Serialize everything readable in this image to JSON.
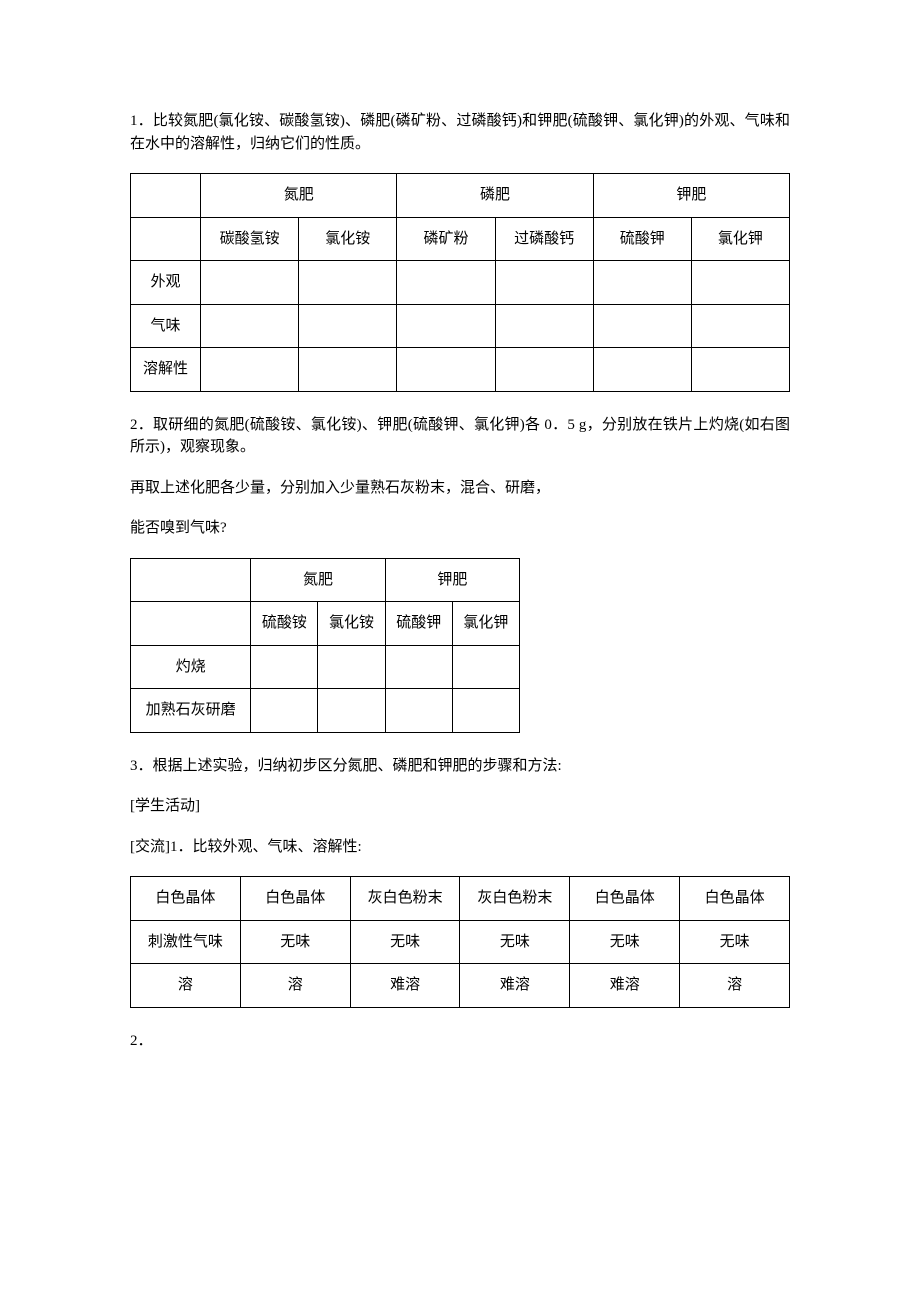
{
  "paragraphs": {
    "p1": "1．比较氮肥(氯化铵、碳酸氢铵)、磷肥(磷矿粉、过磷酸钙)和钾肥(硫酸钾、氯化钾)的外观、气味和在水中的溶解性，归纳它们的性质。",
    "p2": "2．取研细的氮肥(硫酸铵、氯化铵)、钾肥(硫酸钾、氯化钾)各 0．5 g，分别放在铁片上灼烧(如右图所示)，观察现象。",
    "p3": "再取上述化肥各少量，分别加入少量熟石灰粉末，混合、研磨，",
    "p4": "能否嗅到气味?",
    "p5": "3．根据上述实验，归纳初步区分氮肥、磷肥和钾肥的步骤和方法:",
    "p6": "[学生活动]",
    "p7": "[交流]1．比较外观、气味、溶解性:",
    "p8": "2．"
  },
  "table1": {
    "headers": {
      "group1": "氮肥",
      "group2": "磷肥",
      "group3": "钾肥",
      "sub1": "碳酸氢铵",
      "sub2": "氯化铵",
      "sub3": "磷矿粉",
      "sub4": "过磷酸钙",
      "sub5": "硫酸钾",
      "sub6": "氯化钾"
    },
    "rows": {
      "r1": "外观",
      "r2": "气味",
      "r3": "溶解性"
    }
  },
  "table2": {
    "headers": {
      "group1": "氮肥",
      "group2": "钾肥",
      "sub1": "硫酸铵",
      "sub2": "氯化铵",
      "sub3": "硫酸钾",
      "sub4": "氯化钾"
    },
    "rows": {
      "r1": "灼烧",
      "r2": "加熟石灰研磨"
    }
  },
  "table3": {
    "row1": [
      "白色晶体",
      "白色晶体",
      "灰白色粉末",
      "灰白色粉末",
      "白色晶体",
      "白色晶体"
    ],
    "row2": [
      "刺激性气味",
      "无味",
      "无味",
      "无味",
      "无味",
      "无味"
    ],
    "row3": [
      "溶",
      "溶",
      "难溶",
      "难溶",
      "难溶",
      "溶"
    ]
  }
}
